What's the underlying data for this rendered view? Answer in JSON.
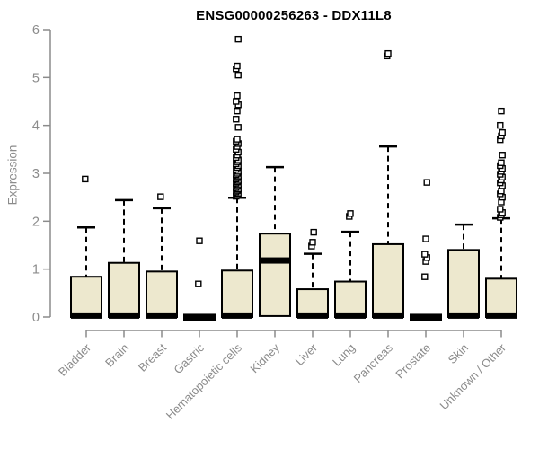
{
  "chart_data": {
    "type": "boxplot",
    "title": "ENSG00000256263 - DDX11L8",
    "ylabel": "Expression",
    "xlabel": "",
    "ylim": [
      0,
      6
    ],
    "yticks": [
      0,
      1,
      2,
      3,
      4,
      5,
      6
    ],
    "grid": "off",
    "legend": "none",
    "categories": [
      "Bladder",
      "Brain",
      "Breast",
      "Gastric",
      "Hematopoietic cells",
      "Kidney",
      "Liver",
      "Lung",
      "Pancreas",
      "Prostate",
      "Skin",
      "Unknown / Other"
    ],
    "boxes": [
      {
        "category": "Bladder",
        "q1": 0,
        "median": 0.03,
        "q3": 0.84,
        "whisker_low": 0,
        "whisker_high": 1.87,
        "outliers": [
          2.88
        ]
      },
      {
        "category": "Brain",
        "q1": 0,
        "median": 0.03,
        "q3": 1.13,
        "whisker_low": 0,
        "whisker_high": 2.44,
        "outliers": []
      },
      {
        "category": "Breast",
        "q1": 0,
        "median": 0.03,
        "q3": 0.95,
        "whisker_low": 0,
        "whisker_high": 2.27,
        "outliers": [
          2.51
        ]
      },
      {
        "category": "Gastric",
        "q1": 0,
        "median": 0.02,
        "q3": 0.02,
        "whisker_low": 0,
        "whisker_high": 0.02,
        "outliers": [
          0.69,
          1.59
        ]
      },
      {
        "category": "Hematopoietic cells",
        "q1": 0,
        "median": 0.03,
        "q3": 0.97,
        "whisker_low": 0,
        "whisker_high": 2.49,
        "outliers": [
          2.52,
          2.55,
          2.58,
          2.61,
          2.64,
          2.67,
          2.7,
          2.73,
          2.76,
          2.79,
          2.82,
          2.85,
          2.88,
          2.91,
          2.94,
          2.97,
          3.0,
          3.04,
          3.08,
          3.12,
          3.16,
          3.2,
          3.24,
          3.28,
          3.33,
          3.38,
          3.44,
          3.5,
          3.56,
          3.62,
          3.67,
          3.71,
          3.96,
          4.13,
          4.3,
          4.43,
          4.5,
          4.62,
          5.05,
          5.18,
          5.24,
          5.8
        ]
      },
      {
        "category": "Kidney",
        "q1": 0.02,
        "median": 1.18,
        "q3": 1.74,
        "whisker_low": 0.02,
        "whisker_high": 3.13,
        "outliers": []
      },
      {
        "category": "Liver",
        "q1": 0,
        "median": 0.03,
        "q3": 0.58,
        "whisker_low": 0,
        "whisker_high": 1.32,
        "outliers": [
          1.48,
          1.56,
          1.77
        ]
      },
      {
        "category": "Lung",
        "q1": 0,
        "median": 0.03,
        "q3": 0.74,
        "whisker_low": 0,
        "whisker_high": 1.78,
        "outliers": [
          2.1,
          2.16
        ]
      },
      {
        "category": "Pancreas",
        "q1": 0,
        "median": 0.03,
        "q3": 1.52,
        "whisker_low": 0,
        "whisker_high": 3.56,
        "outliers": [
          5.45,
          5.5
        ]
      },
      {
        "category": "Prostate",
        "q1": 0,
        "median": 0.02,
        "q3": 0.02,
        "whisker_low": 0,
        "whisker_high": 0.02,
        "outliers": [
          0.84,
          1.16,
          1.24,
          1.31,
          1.63,
          2.81
        ]
      },
      {
        "category": "Skin",
        "q1": 0,
        "median": 0.03,
        "q3": 1.4,
        "whisker_low": 0,
        "whisker_high": 1.93,
        "outliers": []
      },
      {
        "category": "Unknown / Other",
        "q1": 0,
        "median": 0.03,
        "q3": 0.8,
        "whisker_low": 0,
        "whisker_high": 2.06,
        "outliers": [
          2.08,
          2.13,
          2.18,
          2.25,
          2.4,
          2.5,
          2.57,
          2.63,
          2.74,
          2.8,
          2.86,
          2.92,
          2.98,
          3.04,
          3.1,
          3.16,
          3.22,
          3.38,
          3.7,
          3.78,
          3.85,
          4.0,
          4.3
        ]
      }
    ],
    "colors": {
      "box_fill": "#EDE8CE",
      "box_border": "#000000",
      "median": "#000000",
      "whisker": "#000000",
      "outlier_fill": "#ffffff",
      "axis": "#8b8b8b",
      "text": "#8b8b8b",
      "title": "#000000",
      "background": "#ffffff"
    }
  }
}
